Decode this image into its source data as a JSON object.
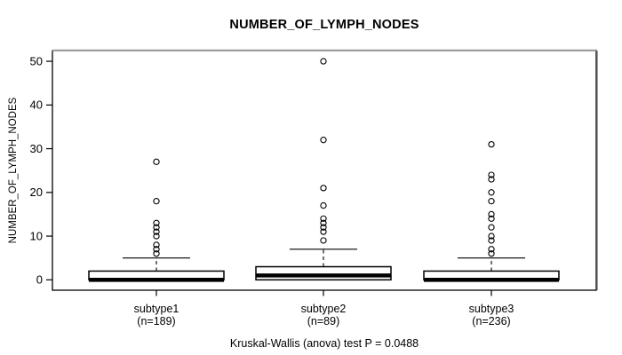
{
  "title": "NUMBER_OF_LYMPH_NODES",
  "y_axis_label": "NUMBER_OF_LYMPH_NODES",
  "caption": "Kruskal-Wallis (anova) test P = 0.0488",
  "colors": {
    "stroke": "#000000",
    "box_fill": "#ffffff",
    "frame_shadow": "#999999",
    "background": "#ffffff",
    "text": "#000000"
  },
  "chart_data": {
    "type": "boxplot",
    "title": "NUMBER_OF_LYMPH_NODES",
    "ylabel": "NUMBER_OF_LYMPH_NODES",
    "xlabel": "",
    "ylim": [
      0,
      50
    ],
    "yticks": [
      0,
      10,
      20,
      30,
      40,
      50
    ],
    "grid": false,
    "annotation": "Kruskal-Wallis (anova) test P = 0.0488",
    "groups": [
      {
        "label": "subtype1",
        "sublabel": "(n=189)",
        "n": 189,
        "q1": 0,
        "median": 0,
        "q3": 2,
        "whisker_low": 0,
        "whisker_high": 5,
        "outliers": [
          6,
          7,
          8,
          10,
          11,
          12,
          13,
          18,
          27
        ]
      },
      {
        "label": "subtype2",
        "sublabel": "(n=89)",
        "n": 89,
        "q1": 0,
        "median": 1,
        "q3": 3,
        "whisker_low": 0,
        "whisker_high": 7,
        "outliers": [
          9,
          11,
          12,
          13,
          14,
          17,
          21,
          32,
          50
        ]
      },
      {
        "label": "subtype3",
        "sublabel": "(n=236)",
        "n": 236,
        "q1": 0,
        "median": 0,
        "q3": 2,
        "whisker_low": 0,
        "whisker_high": 5,
        "outliers": [
          6,
          7,
          9,
          10,
          12,
          14,
          15,
          18,
          20,
          23,
          24,
          31
        ]
      }
    ]
  }
}
